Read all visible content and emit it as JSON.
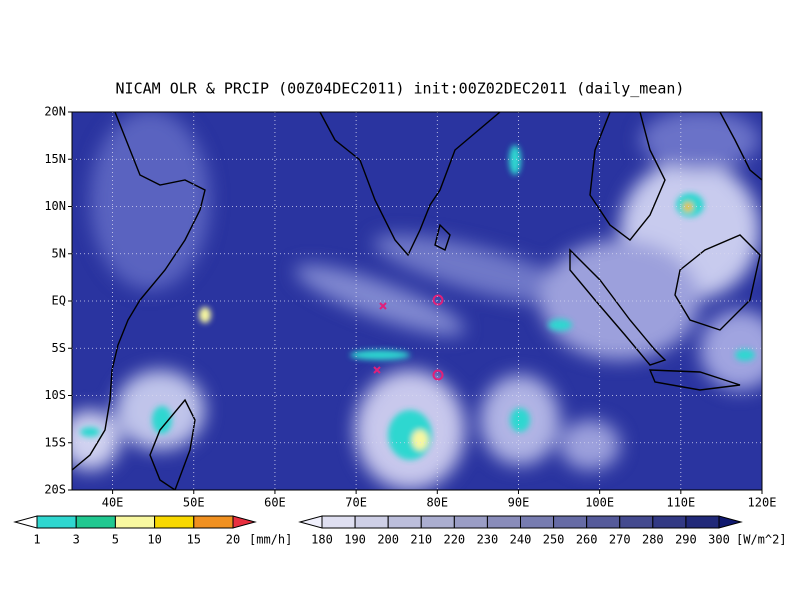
{
  "title": "NICAM OLR & PRCIP (00Z04DEC2011) init:00Z02DEC2011 (daily_mean)",
  "map": {
    "lat_labels": [
      "20N",
      "15N",
      "10N",
      "5N",
      "EQ",
      "5S",
      "10S",
      "15S",
      "20S"
    ],
    "lon_labels": [
      "40E",
      "50E",
      "60E",
      "70E",
      "80E",
      "90E",
      "100E",
      "110E",
      "120E"
    ]
  },
  "precip_colorbar": {
    "labels": [
      1,
      3,
      5,
      10,
      15,
      20
    ],
    "unit": "[mm/h]"
  },
  "olr_colorbar": {
    "labels": [
      180,
      190,
      200,
      210,
      220,
      230,
      240,
      250,
      260,
      270,
      280,
      290,
      300
    ],
    "unit": "[W/m^2]"
  }
}
